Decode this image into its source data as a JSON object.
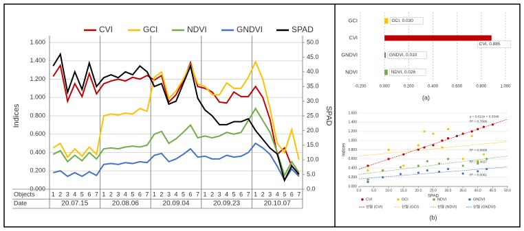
{
  "chart_data": [
    {
      "type": "line",
      "categories": [
        "1",
        "2",
        "3",
        "4",
        "5",
        "6",
        "7",
        "1",
        "2",
        "3",
        "4",
        "5",
        "6",
        "7",
        "1",
        "2",
        "3",
        "4",
        "5",
        "6",
        "7",
        "1",
        "2",
        "3",
        "4",
        "5",
        "6",
        "7",
        "1",
        "2",
        "3",
        "4",
        "5",
        "6",
        "7"
      ],
      "date_groups": [
        "20.07.15",
        "20.08.06",
        "20.09.04",
        "20.09.23",
        "20.10.07"
      ],
      "row_labels": [
        "Objects",
        "Date"
      ],
      "y_label": "Indices",
      "y2_label": "SPAD",
      "ylim": [
        0,
        1.6
      ],
      "yticks": [
        {
          "value": 0,
          "label": "0.000"
        },
        {
          "value": 0.2,
          "label": "0.200"
        },
        {
          "value": 0.4,
          "label": "0.400"
        },
        {
          "value": 0.6,
          "label": "0.600"
        },
        {
          "value": 0.8,
          "label": "0.800"
        },
        {
          "value": 1.0,
          "label": "1.000"
        },
        {
          "value": 1.2,
          "label": "1.200"
        },
        {
          "value": 1.4,
          "label": "1.400"
        },
        {
          "value": 1.6,
          "label": "1.600"
        }
      ],
      "y2lim": [
        0,
        50
      ],
      "y2ticks": [
        {
          "value": 0,
          "label": "0.0"
        },
        {
          "value": 5,
          "label": "5.0"
        },
        {
          "value": 10,
          "label": "10.0"
        },
        {
          "value": 15,
          "label": "15.0"
        },
        {
          "value": 20,
          "label": "20.0"
        },
        {
          "value": 25,
          "label": "25.0"
        },
        {
          "value": 30,
          "label": "30.0"
        },
        {
          "value": 35,
          "label": "35.0"
        },
        {
          "value": 40,
          "label": "40.0"
        },
        {
          "value": 45,
          "label": "45.0"
        },
        {
          "value": 50,
          "label": "50.0"
        }
      ],
      "grid": true,
      "series": [
        {
          "name": "CVI",
          "color": "#c00000",
          "values": [
            1.23,
            1.35,
            0.96,
            1.15,
            1.01,
            1.26,
            1.04,
            1.15,
            1.18,
            1.2,
            1.18,
            1.22,
            1.2,
            1.24,
            1.19,
            1.24,
            0.95,
            1.03,
            1.18,
            1.38,
            1.12,
            1.1,
            1.06,
            0.95,
            0.94,
            1.06,
            1.01,
            1.01,
            1.12,
            1.0,
            0.76,
            0.38,
            0.45,
            0.25,
            0.17
          ]
        },
        {
          "name": "GCI",
          "color": "#ffc000",
          "values": [
            0.45,
            0.5,
            0.35,
            0.44,
            0.36,
            0.46,
            0.38,
            0.8,
            0.82,
            0.81,
            0.83,
            0.82,
            0.88,
            0.85,
            1.22,
            1.28,
            0.99,
            1.07,
            1.2,
            1.36,
            1.15,
            1.12,
            1.03,
            1.03,
            1.16,
            1.1,
            1.1,
            1.22,
            1.39,
            1.2,
            0.88,
            0.5,
            0.4,
            0.65,
            0.32
          ]
        },
        {
          "name": "NDVI",
          "color": "#70ad47",
          "values": [
            0.38,
            0.42,
            0.3,
            0.37,
            0.31,
            0.4,
            0.33,
            0.44,
            0.45,
            0.44,
            0.46,
            0.47,
            0.46,
            0.48,
            0.6,
            0.63,
            0.5,
            0.55,
            0.62,
            0.7,
            0.56,
            0.58,
            0.56,
            0.58,
            0.62,
            0.6,
            0.62,
            0.75,
            0.88,
            0.75,
            0.62,
            0.4,
            0.15,
            0.3,
            0.18
          ]
        },
        {
          "name": "GNDVI",
          "color": "#4472c4",
          "values": [
            0.18,
            0.2,
            0.14,
            0.18,
            0.14,
            0.19,
            0.15,
            0.27,
            0.28,
            0.27,
            0.29,
            0.28,
            0.3,
            0.29,
            0.37,
            0.39,
            0.3,
            0.33,
            0.38,
            0.44,
            0.35,
            0.36,
            0.33,
            0.33,
            0.37,
            0.35,
            0.36,
            0.4,
            0.5,
            0.45,
            0.38,
            0.25,
            0.1,
            0.22,
            0.14
          ]
        },
        {
          "name": "SPAD",
          "color": "#000000",
          "axis": "y2",
          "values": [
            42,
            46,
            33,
            40,
            34,
            43,
            35,
            38,
            39,
            38,
            40,
            39,
            42,
            40,
            35,
            36,
            29,
            30,
            36,
            42,
            31,
            27,
            25,
            22,
            22,
            23,
            23,
            24,
            20,
            17,
            14,
            12,
            3,
            8,
            5
          ]
        }
      ]
    },
    {
      "type": "bar",
      "orientation": "horizontal",
      "caption": "(a)",
      "categories": [
        "GCI",
        "CVI",
        "GNDVI",
        "NDVI"
      ],
      "values": [
        0.03,
        0.885,
        0.01,
        0.026
      ],
      "value_labels": [
        "GCI, 0.030",
        "CVI, 0.885",
        "GNDVI, 0.010",
        "NDVI, 0.026"
      ],
      "colors": [
        "#ffc000",
        "#c00000",
        "#4472c4",
        "#70ad47"
      ],
      "xlim": [
        -0.2,
        1.0
      ],
      "xticks": [
        {
          "value": -0.2,
          "label": "-0.200"
        },
        {
          "value": 0,
          "label": "0.000"
        },
        {
          "value": 0.2,
          "label": "0.200"
        },
        {
          "value": 0.4,
          "label": "0.400"
        },
        {
          "value": 0.6,
          "label": "0.600"
        },
        {
          "value": 0.8,
          "label": "0.800"
        },
        {
          "value": 1.0,
          "label": "1.000"
        }
      ],
      "grid": true
    },
    {
      "type": "scatter",
      "caption": "(b)",
      "x_label": "SPAD",
      "y_label": "Indices",
      "xlim": [
        0,
        50
      ],
      "xticks": [
        {
          "value": 0,
          "label": "0.0"
        },
        {
          "value": 5,
          "label": "5.0"
        },
        {
          "value": 10,
          "label": "10.0"
        },
        {
          "value": 15,
          "label": "15.0"
        },
        {
          "value": 20,
          "label": "20.0"
        },
        {
          "value": 25,
          "label": "25.0"
        },
        {
          "value": 30,
          "label": "30.0"
        },
        {
          "value": 35,
          "label": "35.0"
        },
        {
          "value": 40,
          "label": "40.0"
        },
        {
          "value": 45,
          "label": "45.0"
        },
        {
          "value": 50,
          "label": "50.0"
        }
      ],
      "ylim": [
        0,
        1.6
      ],
      "yticks": [
        {
          "value": 0,
          "label": "0.000"
        },
        {
          "value": 0.2,
          "label": "0.200"
        },
        {
          "value": 0.4,
          "label": "0.400"
        },
        {
          "value": 0.6,
          "label": "0.600"
        },
        {
          "value": 0.8,
          "label": "0.800"
        },
        {
          "value": 1.0,
          "label": "1.000"
        },
        {
          "value": 1.2,
          "label": "1.200"
        },
        {
          "value": 1.4,
          "label": "1.400"
        },
        {
          "value": 1.6,
          "label": "1.600"
        }
      ],
      "annotations": [
        "y = 0.022x + 0.3346",
        "R² = 0.7606",
        "R² = 0.0009",
        "R² = 0.3027",
        "R² = 0.0061"
      ],
      "series": [
        {
          "name": "CVI",
          "trend_name": "선형 (CVI)",
          "color": "#c00000",
          "x": [
            3,
            10,
            15,
            20,
            22,
            25,
            28,
            30,
            33,
            35,
            38,
            40,
            42,
            45
          ],
          "y": [
            0.45,
            0.6,
            0.7,
            0.8,
            0.85,
            0.9,
            1.0,
            1.05,
            1.1,
            1.15,
            1.2,
            1.25,
            1.3,
            1.35
          ]
        },
        {
          "name": "GCI",
          "trend_name": "선형 (GCI)",
          "color": "#ffc000",
          "x": [
            3,
            10,
            15,
            20,
            22,
            25,
            28,
            30,
            35,
            38,
            40,
            42
          ],
          "y": [
            0.35,
            0.8,
            0.45,
            0.9,
            1.2,
            1.15,
            0.85,
            1.25,
            0.6,
            1.1,
            0.55,
            0.7
          ]
        },
        {
          "name": "NDVI",
          "trend_name": "선형 (NDVI)",
          "color": "#70ad47",
          "x": [
            3,
            8,
            14,
            20,
            23,
            27,
            30,
            35,
            40,
            43
          ],
          "y": [
            0.15,
            0.35,
            0.42,
            0.45,
            0.55,
            0.5,
            0.6,
            0.45,
            0.5,
            0.6
          ]
        },
        {
          "name": "GNDVI",
          "trend_name": "선형 (GNDVI)",
          "color": "#4472c4",
          "x": [
            3,
            8,
            14,
            20,
            23,
            27,
            30,
            35,
            40,
            43
          ],
          "y": [
            0.1,
            0.2,
            0.27,
            0.3,
            0.35,
            0.32,
            0.38,
            0.28,
            0.33,
            0.38
          ]
        }
      ]
    }
  ]
}
